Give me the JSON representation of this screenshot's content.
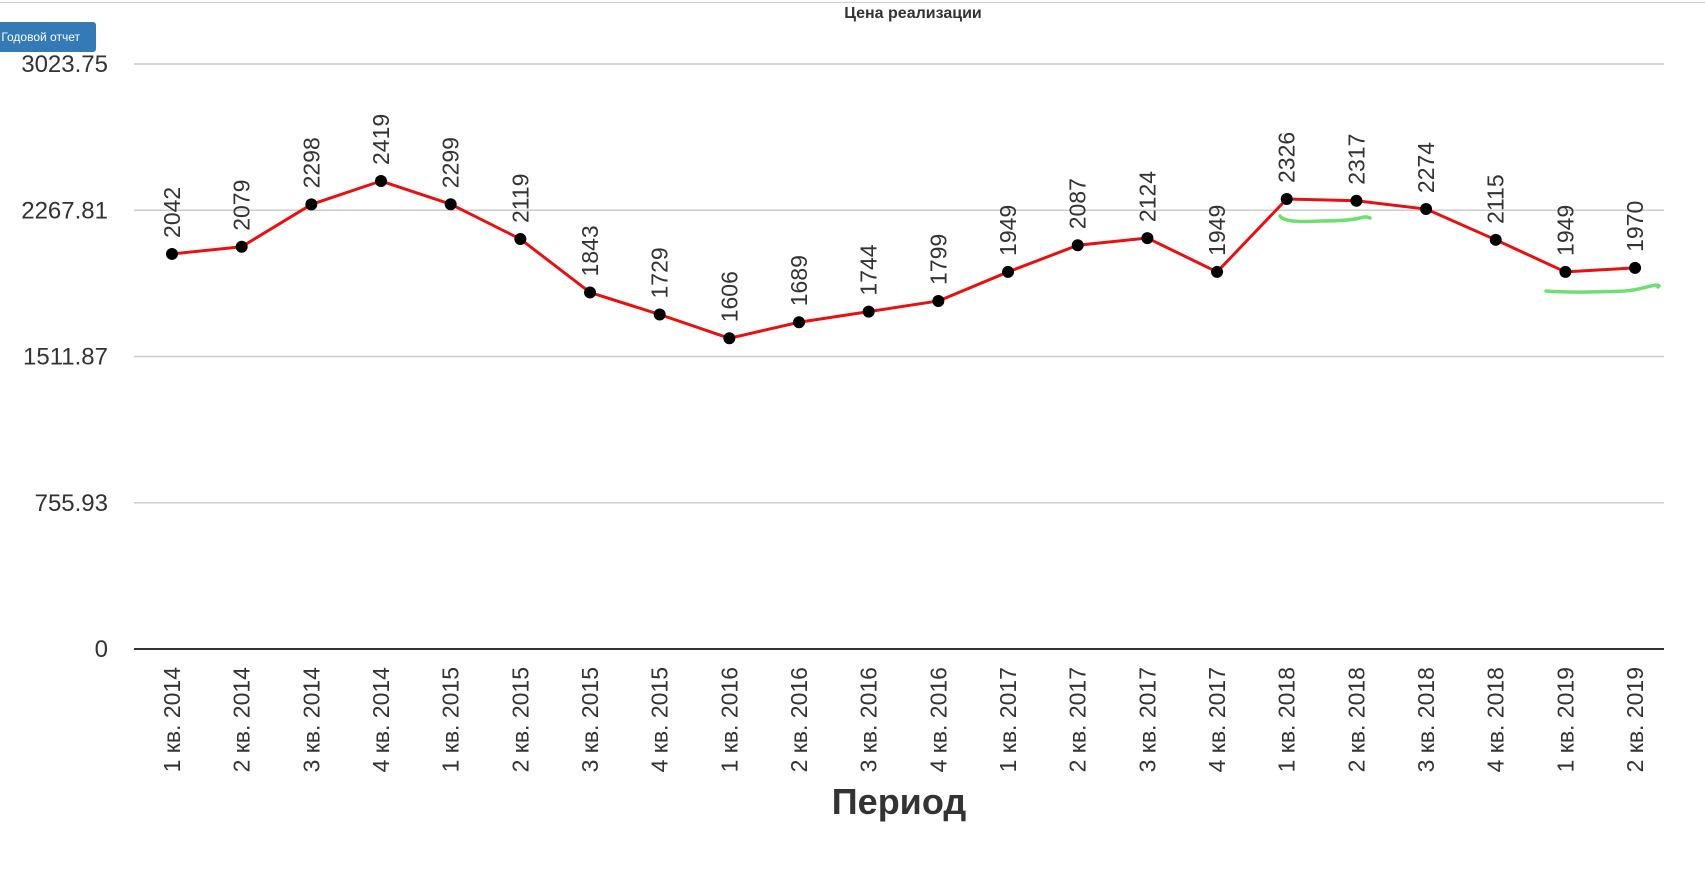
{
  "toolbar": {
    "report_button_label": "Годовой отчет"
  },
  "chart_data": {
    "type": "line",
    "title": "Цена реализации",
    "xlabel": "Период",
    "ylabel": "",
    "ylim": [
      0,
      3023.75
    ],
    "yticks": [
      "3023.75",
      "2267.81",
      "1511.87",
      "755.93",
      "0"
    ],
    "categories": [
      "1 кв. 2014",
      "2 кв. 2014",
      "3 кв. 2014",
      "4 кв. 2014",
      "1 кв. 2015",
      "2 кв. 2015",
      "3 кв. 2015",
      "4 кв. 2015",
      "1 кв. 2016",
      "2 кв. 2016",
      "3 кв. 2016",
      "4 кв. 2016",
      "1 кв. 2017",
      "2 кв. 2017",
      "3 кв. 2017",
      "4 кв. 2017",
      "1 кв. 2018",
      "2 кв. 2018",
      "3 кв. 2018",
      "4 кв. 2018",
      "1 кв. 2019",
      "2 кв. 2019"
    ],
    "series": [
      {
        "values": [
          2042,
          2079,
          2298,
          2419,
          2299,
          2119,
          1843,
          1729,
          1606,
          1689,
          1744,
          1799,
          1949,
          2087,
          2124,
          1949,
          2326,
          2317,
          2274,
          2115,
          1949,
          1970
        ],
        "color": "#e81010",
        "marker_color": "#000000"
      }
    ],
    "grid": true,
    "highlight_color": "#6fe06f"
  }
}
